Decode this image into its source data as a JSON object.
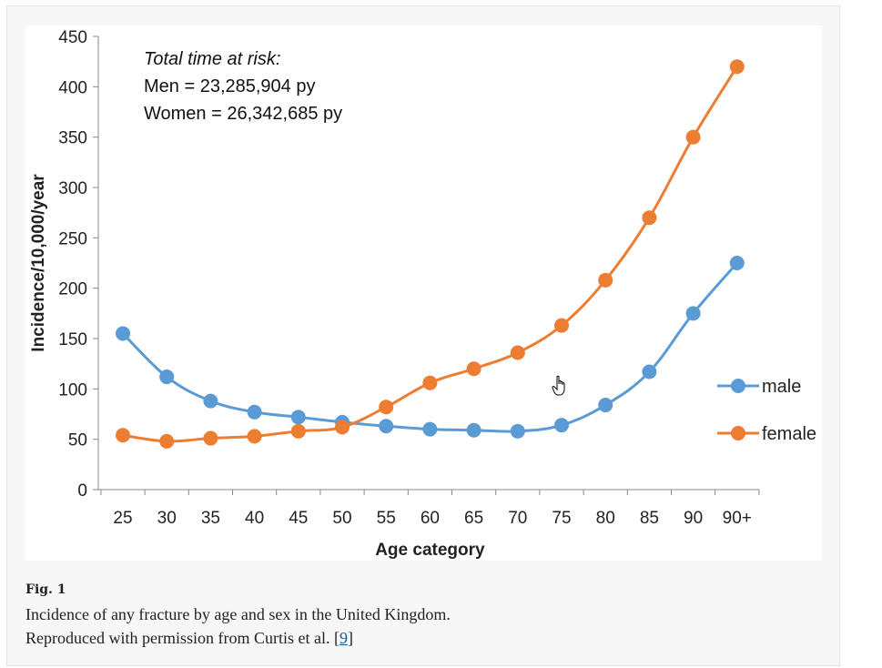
{
  "chart_data": {
    "type": "line",
    "categories": [
      "25",
      "30",
      "35",
      "40",
      "45",
      "50",
      "55",
      "60",
      "65",
      "70",
      "75",
      "80",
      "85",
      "90",
      "90+"
    ],
    "series": [
      {
        "name": "male",
        "color": "#5b9bd5",
        "values": [
          155,
          112,
          88,
          77,
          72,
          67,
          63,
          60,
          59,
          58,
          64,
          84,
          117,
          175,
          225
        ]
      },
      {
        "name": "female",
        "color": "#ed7d31",
        "values": [
          54,
          48,
          51,
          53,
          58,
          62,
          82,
          106,
          120,
          136,
          163,
          208,
          270,
          350,
          420
        ]
      }
    ],
    "title": "",
    "xlabel": "Age category",
    "ylabel": "Incidence/10,000/year",
    "ylim": [
      0,
      450
    ],
    "yticks": [
      0,
      50,
      100,
      150,
      200,
      250,
      300,
      350,
      400,
      450
    ],
    "legend_position": "right",
    "annotation": {
      "heading": "Total time at risk:",
      "men": "Men = 23,285,904 py",
      "women": "Women = 26,342,685 py"
    }
  },
  "caption": {
    "fig_label": "Fig. 1",
    "line1": "Incidence of any fracture by age and sex in the United Kingdom.",
    "line2_prefix": "Reproduced with permission from Curtis et al. [",
    "ref": "9",
    "line2_suffix": "]"
  }
}
